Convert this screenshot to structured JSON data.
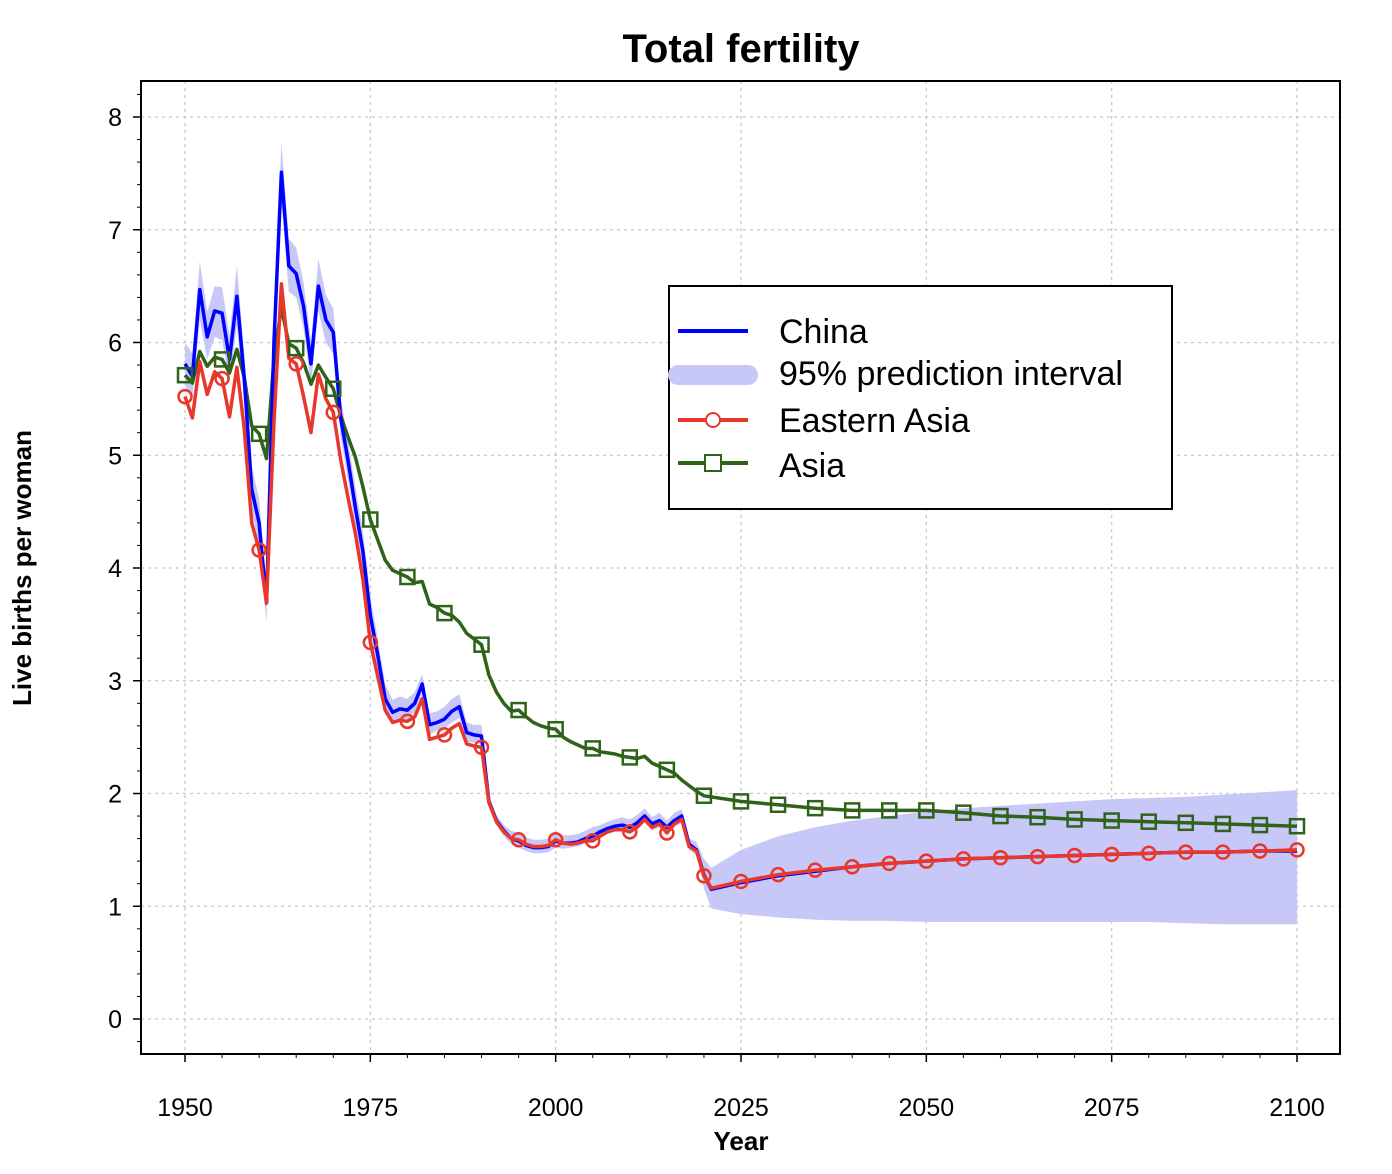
{
  "chart_data": {
    "type": "line",
    "title": "Total fertility",
    "xlabel": "Year",
    "ylabel": "Live births per woman",
    "xlim": [
      1950,
      2100
    ],
    "ylim": [
      0,
      8
    ],
    "x_ticks": [
      1950,
      1975,
      2000,
      2025,
      2050,
      2075,
      2100
    ],
    "y_ticks": [
      0,
      1,
      2,
      3,
      4,
      5,
      6,
      7,
      8
    ],
    "x_tick_labels": [
      "1950",
      "1975",
      "2000",
      "2025",
      "2050",
      "2075",
      "2100"
    ],
    "y_tick_labels": [
      "0",
      "1",
      "2",
      "3",
      "4",
      "5",
      "6",
      "7",
      "8"
    ],
    "grid": true,
    "legend_position": "upper-right",
    "legend": [
      {
        "label": "China",
        "style": "line",
        "color": "#0000ff"
      },
      {
        "label": "95% prediction interval",
        "style": "band",
        "color": "#c8c8f8"
      },
      {
        "label": "Eastern Asia",
        "style": "line-circle",
        "color": "#e8372b"
      },
      {
        "label": "Asia",
        "style": "line-square",
        "color": "#2f6319"
      }
    ],
    "series": [
      {
        "name": "China",
        "color": "#0000ff",
        "x": [
          1950,
          1951,
          1952,
          1953,
          1954,
          1955,
          1956,
          1957,
          1958,
          1959,
          1960,
          1961,
          1962,
          1963,
          1964,
          1965,
          1966,
          1967,
          1968,
          1969,
          1970,
          1971,
          1972,
          1973,
          1974,
          1975,
          1976,
          1977,
          1978,
          1979,
          1980,
          1981,
          1982,
          1983,
          1984,
          1985,
          1986,
          1987,
          1988,
          1989,
          1990,
          1991,
          1992,
          1993,
          1994,
          1995,
          1996,
          1997,
          1998,
          1999,
          2000,
          2001,
          2002,
          2003,
          2004,
          2005,
          2006,
          2007,
          2008,
          2009,
          2010,
          2011,
          2012,
          2013,
          2014,
          2015,
          2016,
          2017,
          2018,
          2019,
          2020,
          2021,
          2025,
          2030,
          2035,
          2040,
          2045,
          2050,
          2055,
          2060,
          2065,
          2070,
          2075,
          2080,
          2085,
          2090,
          2095,
          2100
        ],
        "values": [
          5.81,
          5.7,
          6.47,
          6.05,
          6.28,
          6.26,
          5.85,
          6.41,
          5.68,
          4.7,
          4.4,
          3.69,
          6.01,
          7.51,
          6.68,
          6.61,
          6.32,
          5.81,
          6.5,
          6.2,
          6.09,
          5.33,
          4.95,
          4.53,
          4.15,
          3.58,
          3.23,
          2.84,
          2.72,
          2.75,
          2.74,
          2.8,
          2.97,
          2.61,
          2.63,
          2.66,
          2.73,
          2.77,
          2.54,
          2.52,
          2.51,
          1.93,
          1.76,
          1.67,
          1.6,
          1.58,
          1.54,
          1.52,
          1.52,
          1.53,
          1.58,
          1.56,
          1.56,
          1.57,
          1.6,
          1.62,
          1.66,
          1.69,
          1.71,
          1.72,
          1.7,
          1.74,
          1.8,
          1.73,
          1.76,
          1.7,
          1.76,
          1.8,
          1.55,
          1.5,
          1.28,
          1.15,
          1.21,
          1.27,
          1.31,
          1.35,
          1.38,
          1.4,
          1.42,
          1.43,
          1.44,
          1.45,
          1.46,
          1.47,
          1.48,
          1.48,
          1.49,
          1.49
        ]
      },
      {
        "name": "Eastern Asia",
        "color": "#e8372b",
        "x": [
          1950,
          1951,
          1952,
          1953,
          1954,
          1955,
          1956,
          1957,
          1958,
          1959,
          1960,
          1961,
          1962,
          1963,
          1964,
          1965,
          1966,
          1967,
          1968,
          1969,
          1970,
          1971,
          1972,
          1973,
          1974,
          1975,
          1976,
          1977,
          1978,
          1979,
          1980,
          1981,
          1982,
          1983,
          1984,
          1985,
          1986,
          1987,
          1988,
          1989,
          1990,
          1991,
          1992,
          1993,
          1994,
          1995,
          1996,
          1997,
          1998,
          1999,
          2000,
          2001,
          2002,
          2003,
          2004,
          2005,
          2006,
          2007,
          2008,
          2009,
          2010,
          2011,
          2012,
          2013,
          2014,
          2015,
          2016,
          2017,
          2018,
          2019,
          2020,
          2021,
          2025,
          2030,
          2035,
          2040,
          2045,
          2050,
          2055,
          2060,
          2065,
          2070,
          2075,
          2080,
          2085,
          2090,
          2095,
          2100
        ],
        "values": [
          5.52,
          5.33,
          5.83,
          5.54,
          5.74,
          5.68,
          5.34,
          5.78,
          5.23,
          4.4,
          4.16,
          3.69,
          5.3,
          6.52,
          5.86,
          5.81,
          5.52,
          5.2,
          5.72,
          5.5,
          5.38,
          4.96,
          4.62,
          4.3,
          3.9,
          3.34,
          3.04,
          2.74,
          2.63,
          2.65,
          2.64,
          2.68,
          2.84,
          2.48,
          2.5,
          2.52,
          2.58,
          2.62,
          2.44,
          2.42,
          2.41,
          1.92,
          1.75,
          1.66,
          1.6,
          1.59,
          1.55,
          1.53,
          1.53,
          1.54,
          1.59,
          1.56,
          1.55,
          1.56,
          1.58,
          1.58,
          1.62,
          1.66,
          1.68,
          1.68,
          1.66,
          1.7,
          1.77,
          1.7,
          1.73,
          1.65,
          1.73,
          1.77,
          1.53,
          1.49,
          1.27,
          1.16,
          1.22,
          1.28,
          1.32,
          1.35,
          1.38,
          1.4,
          1.42,
          1.43,
          1.44,
          1.45,
          1.46,
          1.47,
          1.48,
          1.48,
          1.49,
          1.5
        ]
      },
      {
        "name": "Asia",
        "color": "#2f6319",
        "x": [
          1950,
          1951,
          1952,
          1953,
          1954,
          1955,
          1956,
          1957,
          1958,
          1959,
          1960,
          1961,
          1962,
          1963,
          1964,
          1965,
          1966,
          1967,
          1968,
          1969,
          1970,
          1971,
          1972,
          1973,
          1974,
          1975,
          1976,
          1977,
          1978,
          1979,
          1980,
          1981,
          1982,
          1983,
          1984,
          1985,
          1986,
          1987,
          1988,
          1989,
          1990,
          1991,
          1992,
          1993,
          1994,
          1995,
          1996,
          1997,
          1998,
          1999,
          2000,
          2001,
          2002,
          2003,
          2004,
          2005,
          2006,
          2007,
          2008,
          2009,
          2010,
          2011,
          2012,
          2013,
          2014,
          2015,
          2016,
          2017,
          2018,
          2019,
          2020,
          2025,
          2030,
          2035,
          2040,
          2045,
          2050,
          2055,
          2060,
          2065,
          2070,
          2075,
          2080,
          2085,
          2090,
          2095,
          2100
        ],
        "values": [
          5.71,
          5.64,
          5.92,
          5.79,
          5.87,
          5.85,
          5.73,
          5.94,
          5.69,
          5.26,
          5.19,
          4.97,
          5.86,
          6.31,
          5.99,
          5.95,
          5.82,
          5.63,
          5.8,
          5.69,
          5.59,
          5.35,
          5.16,
          4.98,
          4.72,
          4.43,
          4.25,
          4.07,
          3.98,
          3.95,
          3.92,
          3.87,
          3.88,
          3.68,
          3.65,
          3.6,
          3.58,
          3.52,
          3.42,
          3.37,
          3.32,
          3.05,
          2.9,
          2.8,
          2.73,
          2.74,
          2.68,
          2.63,
          2.6,
          2.58,
          2.57,
          2.5,
          2.46,
          2.43,
          2.4,
          2.4,
          2.37,
          2.36,
          2.35,
          2.33,
          2.32,
          2.31,
          2.33,
          2.27,
          2.24,
          2.21,
          2.18,
          2.12,
          2.07,
          2.02,
          1.98,
          1.93,
          1.9,
          1.87,
          1.85,
          1.85,
          1.85,
          1.83,
          1.8,
          1.79,
          1.77,
          1.76,
          1.75,
          1.74,
          1.73,
          1.72,
          1.71
        ]
      }
    ],
    "prediction_interval": {
      "name": "95% prediction interval",
      "color": "#c8c8f8",
      "x": [
        1950,
        1951,
        1952,
        1953,
        1954,
        1955,
        1956,
        1957,
        1958,
        1959,
        1960,
        1961,
        1962,
        1963,
        1964,
        1965,
        1966,
        1967,
        1968,
        1969,
        1970,
        1971,
        1972,
        1973,
        1974,
        1975,
        1976,
        1977,
        1978,
        1979,
        1980,
        1981,
        1982,
        1983,
        1984,
        1985,
        1986,
        1987,
        1988,
        1989,
        1990,
        1991,
        1992,
        1993,
        1994,
        1995,
        1996,
        1997,
        1998,
        1999,
        2000,
        2001,
        2002,
        2003,
        2004,
        2005,
        2006,
        2007,
        2008,
        2009,
        2010,
        2011,
        2012,
        2013,
        2014,
        2015,
        2016,
        2017,
        2018,
        2019,
        2020,
        2021,
        2025,
        2030,
        2035,
        2040,
        2045,
        2050,
        2055,
        2060,
        2065,
        2070,
        2075,
        2080,
        2085,
        2090,
        2095,
        2100
      ],
      "lower": [
        5.62,
        5.5,
        6.2,
        5.85,
        6.05,
        6.02,
        5.65,
        6.15,
        5.45,
        4.5,
        4.2,
        3.52,
        5.78,
        7.25,
        6.45,
        6.4,
        6.12,
        5.62,
        6.28,
        6.0,
        5.9,
        5.15,
        4.78,
        4.36,
        3.98,
        3.42,
        3.08,
        2.72,
        2.62,
        2.66,
        2.66,
        2.72,
        2.88,
        2.52,
        2.56,
        2.58,
        2.63,
        2.67,
        2.46,
        2.45,
        2.44,
        1.89,
        1.72,
        1.62,
        1.55,
        1.52,
        1.49,
        1.47,
        1.47,
        1.48,
        1.52,
        1.51,
        1.52,
        1.53,
        1.56,
        1.58,
        1.62,
        1.64,
        1.66,
        1.66,
        1.64,
        1.68,
        1.74,
        1.67,
        1.7,
        1.64,
        1.7,
        1.74,
        1.5,
        1.45,
        1.16,
        0.98,
        0.93,
        0.9,
        0.88,
        0.87,
        0.87,
        0.86,
        0.86,
        0.86,
        0.86,
        0.86,
        0.86,
        0.86,
        0.85,
        0.84,
        0.84,
        0.84
      ],
      "upper": [
        6.0,
        5.9,
        6.72,
        6.27,
        6.5,
        6.49,
        6.06,
        6.68,
        5.9,
        4.9,
        4.62,
        3.86,
        6.24,
        7.77,
        6.92,
        6.84,
        6.53,
        6.01,
        6.74,
        6.42,
        6.3,
        5.52,
        5.13,
        4.71,
        4.33,
        3.75,
        3.38,
        2.97,
        2.83,
        2.86,
        2.84,
        2.9,
        3.06,
        2.71,
        2.73,
        2.77,
        2.84,
        2.88,
        2.63,
        2.61,
        2.61,
        1.98,
        1.81,
        1.72,
        1.67,
        1.65,
        1.61,
        1.59,
        1.59,
        1.6,
        1.66,
        1.63,
        1.63,
        1.64,
        1.67,
        1.7,
        1.72,
        1.75,
        1.77,
        1.79,
        1.77,
        1.81,
        1.87,
        1.79,
        1.83,
        1.76,
        1.83,
        1.86,
        1.6,
        1.57,
        1.42,
        1.34,
        1.5,
        1.62,
        1.7,
        1.76,
        1.8,
        1.84,
        1.87,
        1.89,
        1.91,
        1.93,
        1.95,
        1.96,
        1.97,
        1.99,
        2.01,
        2.03
      ]
    }
  }
}
